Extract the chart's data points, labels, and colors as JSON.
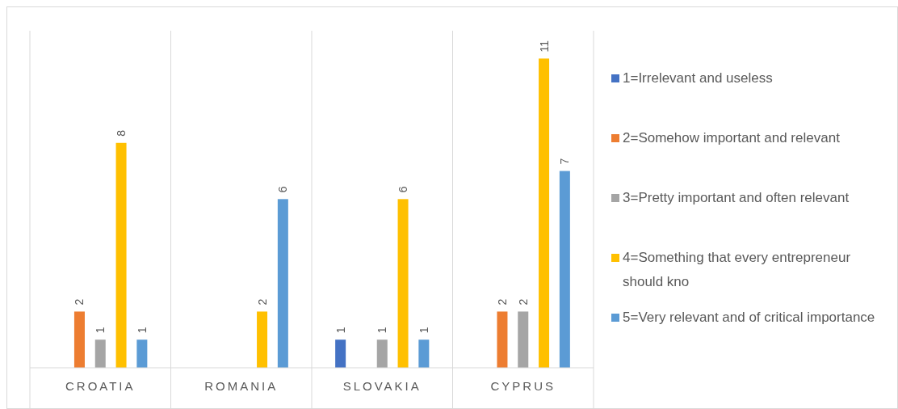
{
  "chart_data": {
    "type": "bar",
    "categories": [
      "CROATIA",
      "ROMANIA",
      "SLOVAKIA",
      "CYPRUS"
    ],
    "series": [
      {
        "name": "1=Irrelevant and useless",
        "color": "#4472c4",
        "values": [
          null,
          null,
          1,
          null
        ]
      },
      {
        "name": "2=Somehow important and relevant",
        "color": "#ed7d31",
        "values": [
          2,
          null,
          null,
          2
        ]
      },
      {
        "name": "3=Pretty important and often relevant",
        "color": "#a5a5a5",
        "values": [
          1,
          null,
          1,
          2
        ]
      },
      {
        "name": "4=Something that every entrepreneur should kno",
        "color": "#ffc000",
        "values": [
          8,
          2,
          6,
          11
        ]
      },
      {
        "name": "5=Very relevant and of critical importance",
        "color": "#5b9bd5",
        "values": [
          1,
          6,
          1,
          7
        ]
      }
    ],
    "data_labels": true,
    "grid": "x",
    "legend": "right",
    "tick_labels": "x"
  }
}
